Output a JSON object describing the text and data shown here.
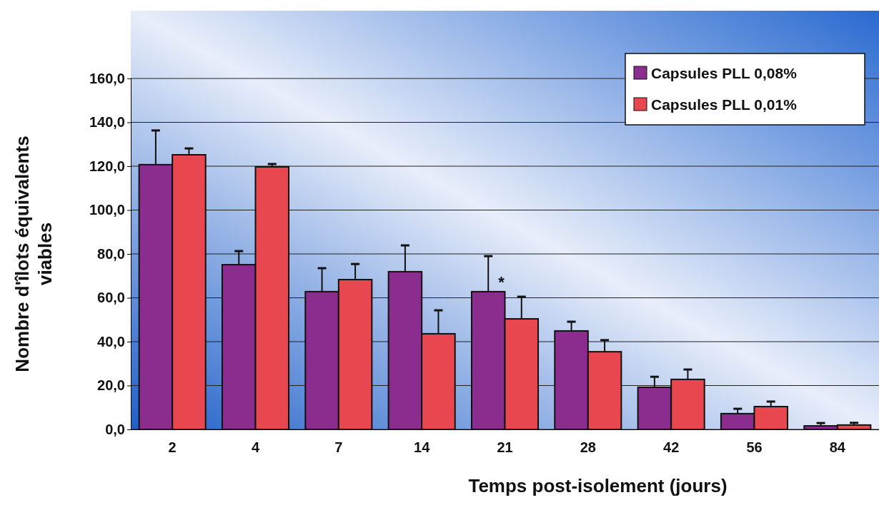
{
  "chart_data": {
    "type": "bar",
    "xlabel": "Temps post-isolement (jours)",
    "ylabel": "Nombre d'îlots équivalents viables",
    "categories": [
      "2",
      "4",
      "7",
      "14",
      "21",
      "28",
      "42",
      "56",
      "84"
    ],
    "series": [
      {
        "name": "Capsules PLL 0,08%",
        "color": "#8b2d8f",
        "values": [
          120.7,
          75.1,
          62.8,
          71.9,
          62.8,
          44.9,
          19.2,
          7.2,
          1.6
        ],
        "errors": [
          [
            120.7,
            136.3
          ],
          [
            75.1,
            81.3
          ],
          [
            62.8,
            73.5
          ],
          [
            71.9,
            83.9
          ],
          [
            62.8,
            79.0
          ],
          [
            44.9,
            49.1
          ],
          [
            19.2,
            24.0
          ],
          [
            7.2,
            9.4
          ],
          [
            1.6,
            2.9
          ]
        ]
      },
      {
        "name": "Capsules PLL 0,01%",
        "color": "#e8474f",
        "values": [
          125.2,
          119.7,
          68.3,
          43.6,
          50.4,
          35.4,
          22.8,
          10.4,
          2.0
        ],
        "errors": [
          [
            125.2,
            128.1
          ],
          [
            119.7,
            121.0
          ],
          [
            68.3,
            75.4
          ],
          [
            43.6,
            54.3
          ],
          [
            50.4,
            60.5
          ],
          [
            35.4,
            40.7
          ],
          [
            22.8,
            27.3
          ],
          [
            10.4,
            12.7
          ],
          [
            2.0,
            3.0
          ]
        ]
      }
    ],
    "ylim": [
      0,
      160
    ],
    "yticks": [
      {
        "value": 0,
        "label": "0,0"
      },
      {
        "value": 20,
        "label": "20,0"
      },
      {
        "value": 40,
        "label": "40,0"
      },
      {
        "value": 60,
        "label": "60,0"
      },
      {
        "value": 80,
        "label": "80,0"
      },
      {
        "value": 100,
        "label": "100,0"
      },
      {
        "value": 120,
        "label": "120,0"
      },
      {
        "value": 140,
        "label": "140,0"
      },
      {
        "value": 160,
        "label": "160,0"
      }
    ],
    "grid": "y",
    "legend": "top right",
    "annotations": [
      {
        "text": "*",
        "x": "21",
        "y": 62.8
      }
    ]
  }
}
